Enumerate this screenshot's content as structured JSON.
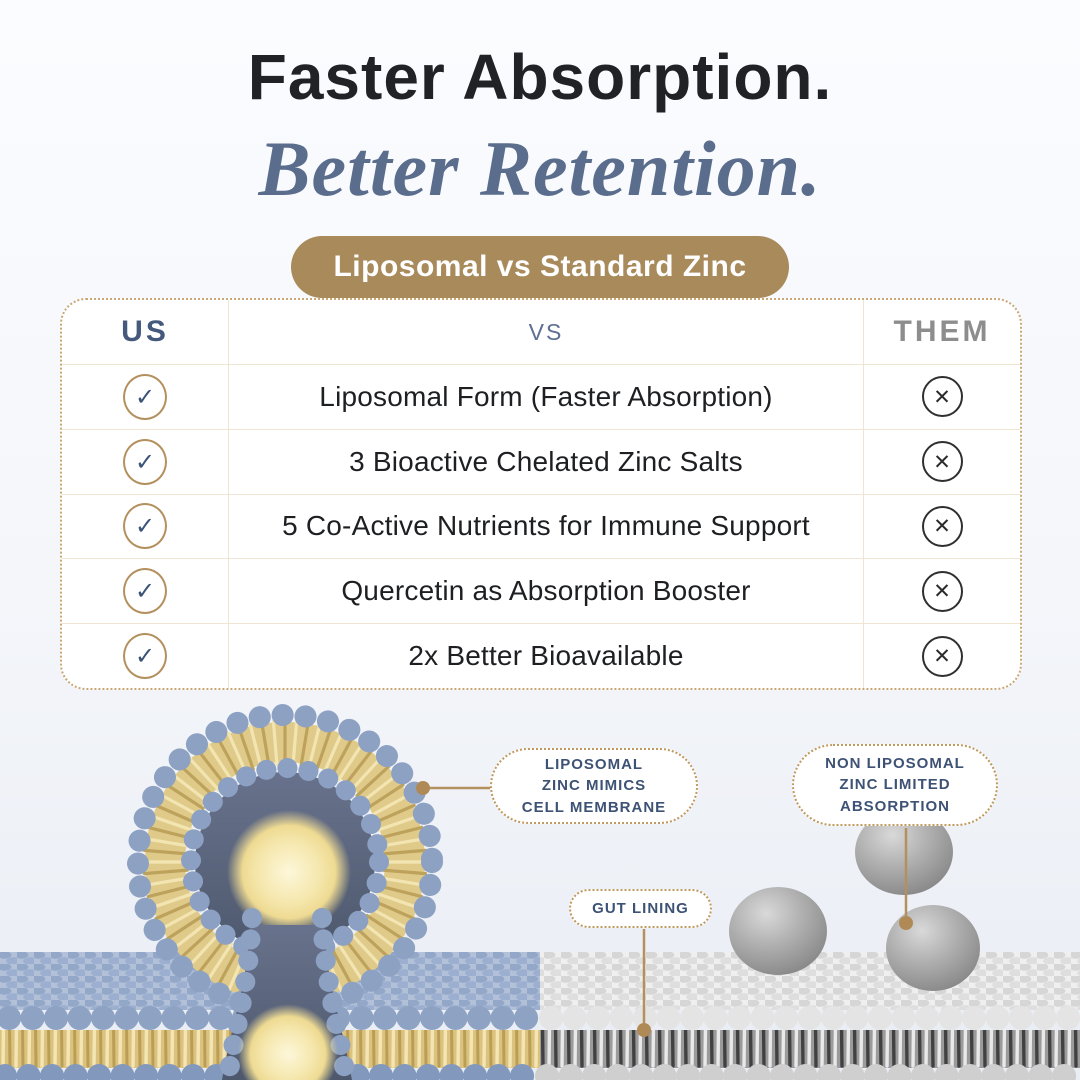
{
  "header": {
    "title": "Faster Absorption.",
    "subtitle": "Better Retention.",
    "badge": "Liposomal vs Standard Zinc"
  },
  "comparison_table": {
    "columns": {
      "us": "US",
      "vs": "VS",
      "them": "THEM"
    },
    "rows": [
      "Liposomal Form (Faster Absorption)",
      "3 Bioactive Chelated Zinc Salts",
      "5 Co-Active Nutrients for Immune Support",
      "Quercetin as Absorption Booster",
      "2x Better Bioavailable"
    ]
  },
  "icons": {
    "check": "✓",
    "cross": "✕"
  },
  "callouts": {
    "liposomal": [
      "LIPOSOMAL",
      "ZINC MIMICS",
      "CELL MEMBRANE"
    ],
    "non_liposomal": [
      "NON LIPOSOMAL",
      "ZINC LIMITED",
      "ABSORPTION"
    ],
    "gut_lining": "GUT LINING"
  },
  "colors": {
    "accent_tan": "#a98a5b",
    "callout_navy": "#3d5275",
    "us_navy": "#44597c",
    "them_gray": "#8d8d8d",
    "check_ring_gold": "#b3905e",
    "membrane_blue": "#8da1c3",
    "membrane_yellow": "#e0ca8a",
    "background": "#f4f6fa"
  }
}
